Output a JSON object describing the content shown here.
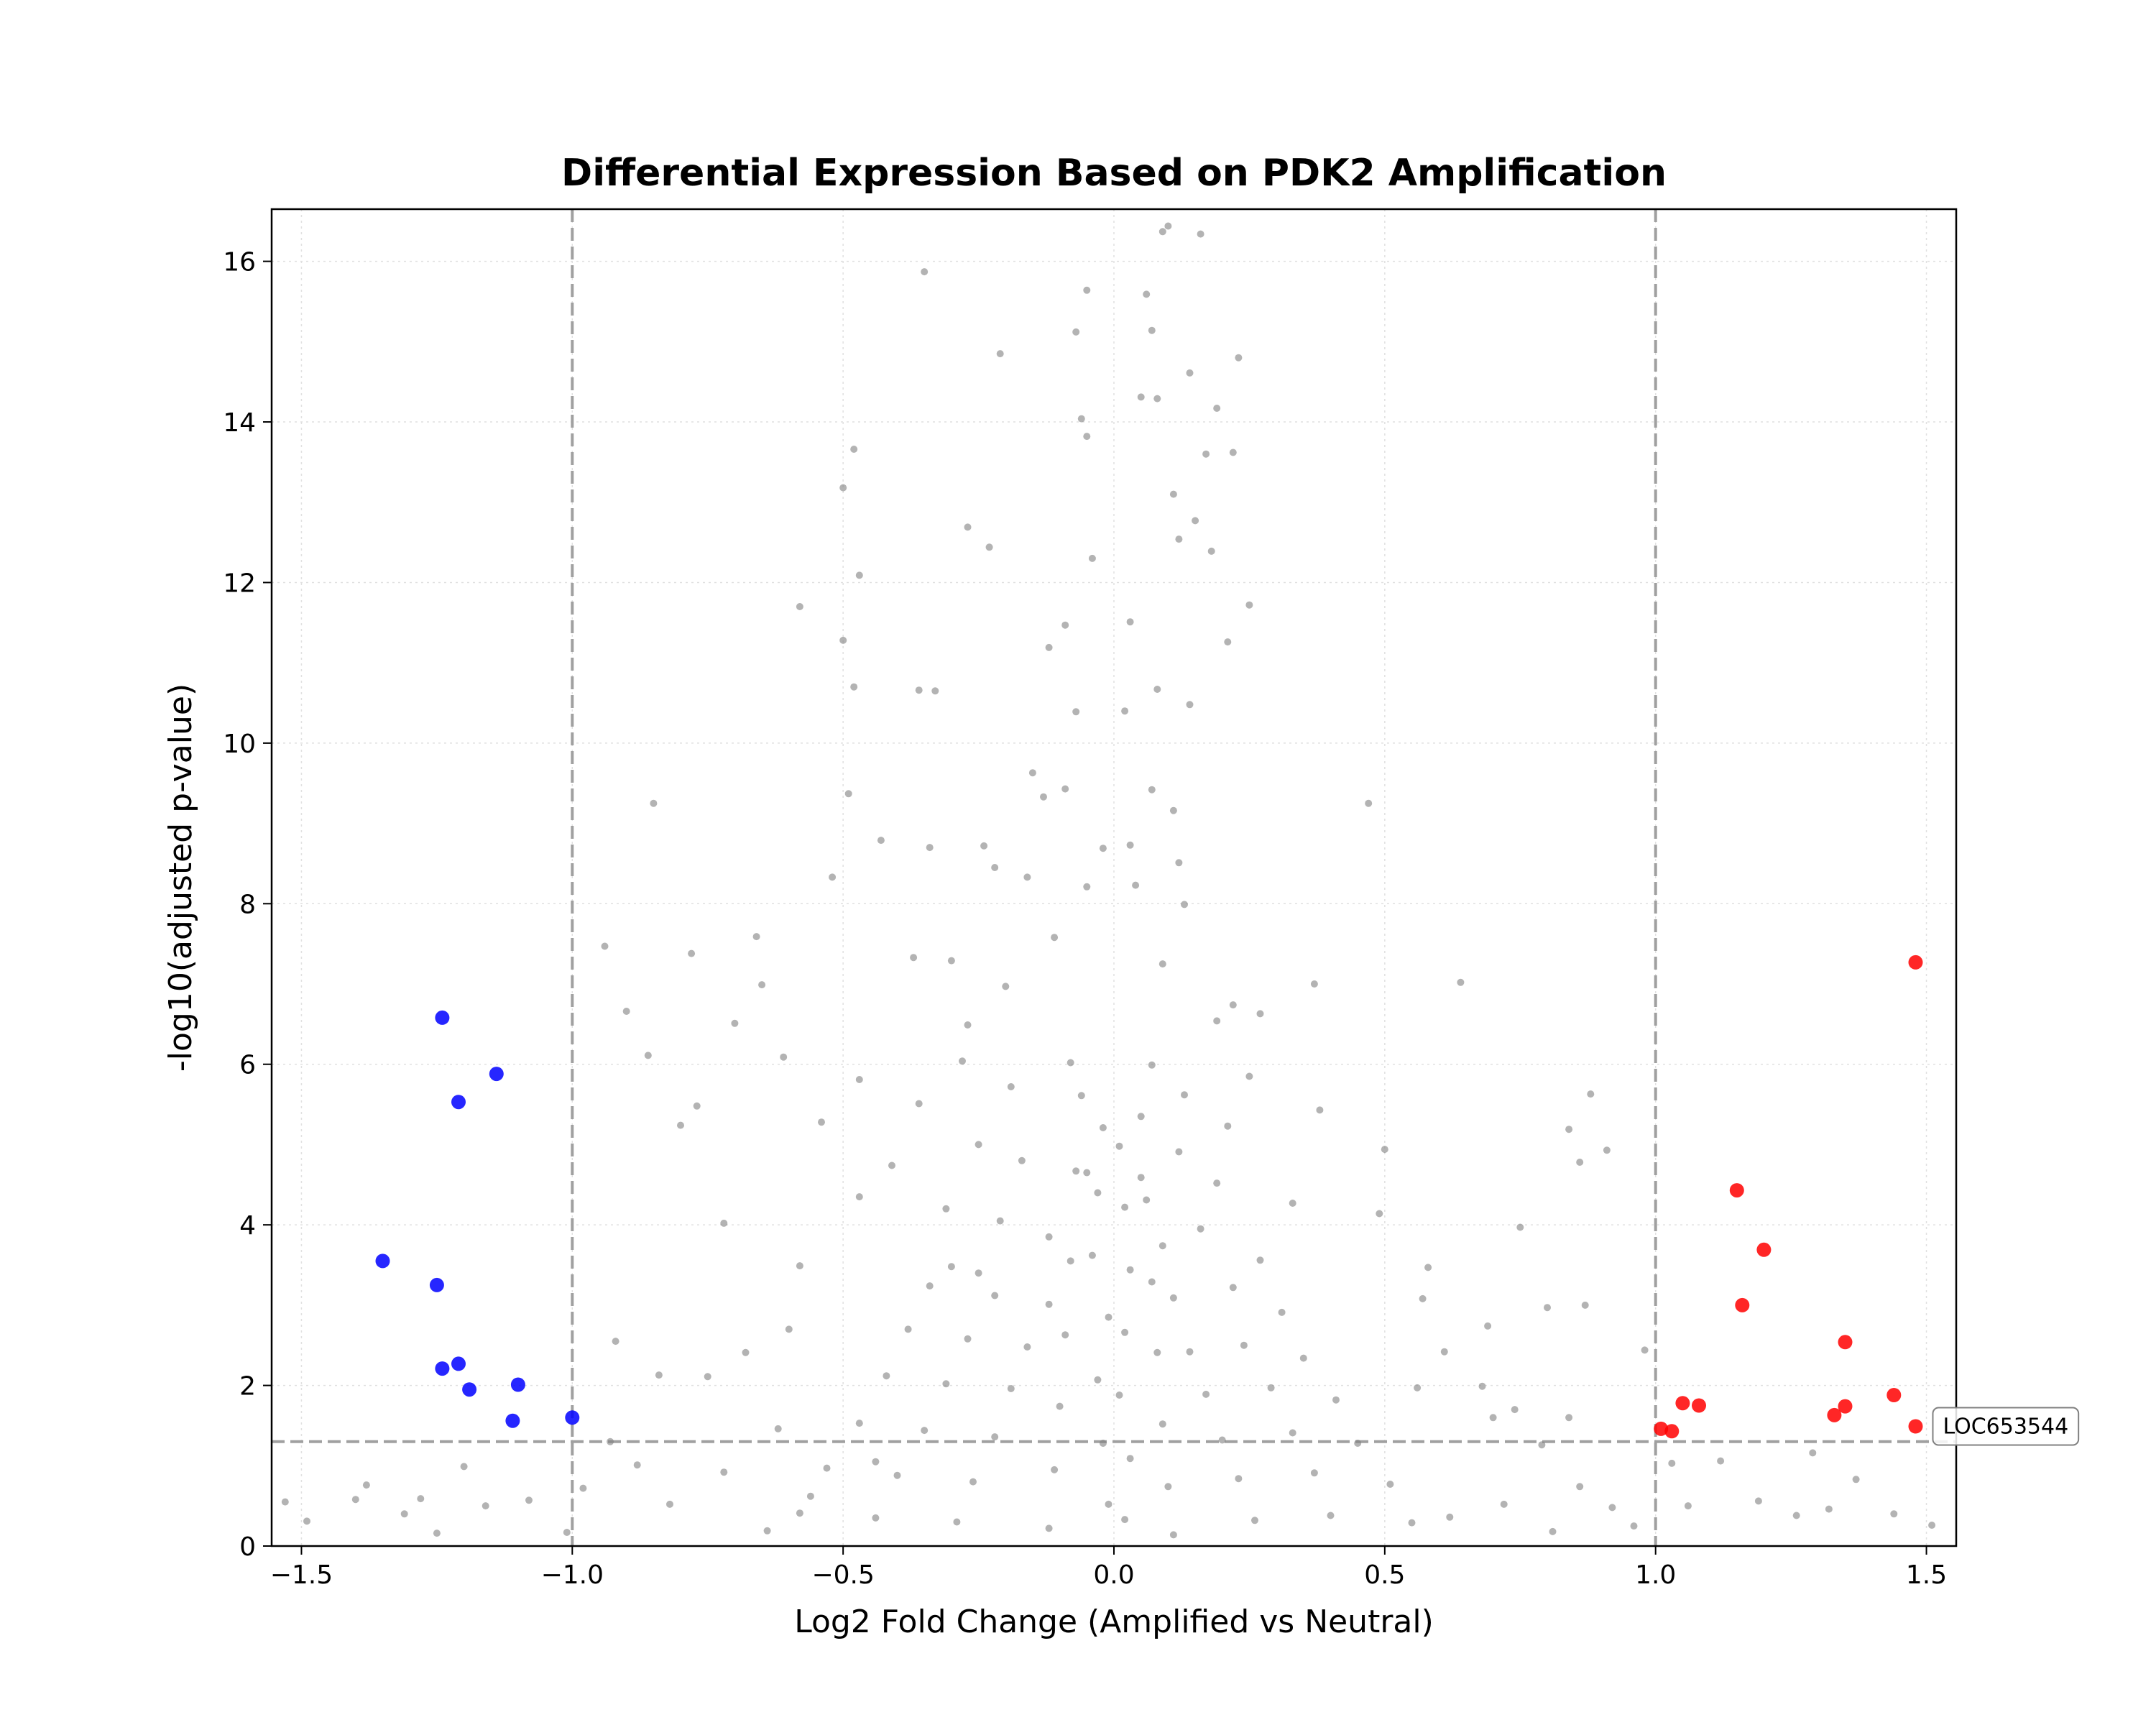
{
  "chart_data": {
    "type": "scatter",
    "title": "Differential Expression Based on PDK2 Amplification",
    "xlabel": "Log2 Fold Change (Amplified vs Neutral)",
    "ylabel": "-log10(adjusted p-value)",
    "xlim": [
      -1.555,
      1.555
    ],
    "ylim": [
      0,
      16.65
    ],
    "xticks": [
      -1.5,
      -1.0,
      -0.5,
      0.0,
      0.5,
      1.0,
      1.5
    ],
    "xtick_labels": [
      "−1.5",
      "−1.0",
      "−0.5",
      "0.0",
      "0.5",
      "1.0",
      "1.5"
    ],
    "yticks": [
      0,
      2,
      4,
      6,
      8,
      10,
      12,
      14,
      16
    ],
    "ytick_labels": [
      "0",
      "2",
      "4",
      "6",
      "8",
      "10",
      "12",
      "14",
      "16"
    ],
    "grid": true,
    "thresholds": {
      "fold_change": [
        -1.0,
        1.0
      ],
      "neg_log10_p": 1.3
    },
    "colors": {
      "background": "#808080",
      "down": "#0000ff",
      "up": "#ff0000",
      "threshold": "#a0a0a0",
      "grid": "#e0e0e0"
    },
    "background_points_note_free": true,
    "series": [
      {
        "color": "#0000ff",
        "points": [
          [
            -1.24,
            6.58
          ],
          [
            -1.14,
            5.88
          ],
          [
            -1.21,
            5.53
          ],
          [
            -1.35,
            3.55
          ],
          [
            -1.25,
            3.25
          ],
          [
            -1.21,
            2.27
          ],
          [
            -1.24,
            2.21
          ],
          [
            -1.19,
            1.95
          ],
          [
            -1.1,
            2.01
          ],
          [
            -1.11,
            1.56
          ],
          [
            -1.0,
            1.6
          ]
        ]
      },
      {
        "color": "#ff0000",
        "points": [
          [
            1.48,
            7.27
          ],
          [
            1.15,
            4.43
          ],
          [
            1.2,
            3.69
          ],
          [
            1.16,
            3.0
          ],
          [
            1.35,
            2.54
          ],
          [
            1.44,
            1.88
          ],
          [
            1.35,
            1.74
          ],
          [
            1.33,
            1.63
          ],
          [
            1.05,
            1.78
          ],
          [
            1.08,
            1.75
          ],
          [
            1.01,
            1.46
          ],
          [
            1.03,
            1.43
          ],
          [
            1.48,
            1.49
          ]
        ]
      },
      {
        "color": "#808080",
        "points": [
          [
            -0.35,
            15.87
          ],
          [
            -0.21,
            14.85
          ],
          [
            -0.48,
            13.66
          ],
          [
            -0.5,
            13.18
          ],
          [
            -0.27,
            12.69
          ],
          [
            -0.23,
            12.44
          ],
          [
            -0.47,
            12.09
          ],
          [
            -0.58,
            11.7
          ],
          [
            -0.5,
            11.28
          ],
          [
            -0.48,
            10.7
          ],
          [
            -0.36,
            10.66
          ],
          [
            -0.33,
            10.65
          ],
          [
            -0.85,
            9.25
          ],
          [
            -0.49,
            9.37
          ],
          [
            -0.43,
            8.79
          ],
          [
            -0.34,
            8.7
          ],
          [
            -0.52,
            8.33
          ],
          [
            -0.94,
            7.47
          ],
          [
            -0.78,
            7.38
          ],
          [
            -0.66,
            7.59
          ],
          [
            -0.65,
            6.99
          ],
          [
            -0.7,
            6.51
          ],
          [
            -0.37,
            7.33
          ],
          [
            -0.3,
            7.29
          ],
          [
            -0.9,
            6.66
          ],
          [
            -0.86,
            6.11
          ],
          [
            -0.61,
            6.09
          ],
          [
            -0.47,
            5.81
          ],
          [
            -0.36,
            5.51
          ],
          [
            -0.54,
            5.28
          ],
          [
            -0.77,
            5.48
          ],
          [
            -0.8,
            5.24
          ],
          [
            -0.41,
            4.74
          ],
          [
            -0.47,
            4.35
          ],
          [
            -0.72,
            4.02
          ],
          [
            -0.58,
            3.49
          ],
          [
            -0.92,
            2.55
          ],
          [
            -0.84,
            2.13
          ],
          [
            -0.62,
            1.46
          ],
          [
            -0.44,
            1.05
          ],
          [
            -0.3,
            3.48
          ],
          [
            -0.25,
            3.4
          ],
          [
            0.47,
            9.25
          ],
          [
            0.64,
            7.02
          ],
          [
            0.37,
            7.0
          ],
          [
            0.22,
            6.74
          ],
          [
            0.27,
            6.63
          ],
          [
            0.38,
            5.43
          ],
          [
            0.5,
            4.94
          ],
          [
            0.49,
            4.14
          ],
          [
            0.33,
            4.27
          ],
          [
            0.25,
            5.85
          ],
          [
            0.88,
            5.63
          ],
          [
            0.84,
            5.19
          ],
          [
            0.91,
            4.93
          ],
          [
            0.86,
            4.78
          ],
          [
            0.75,
            3.97
          ],
          [
            0.58,
            3.47
          ],
          [
            0.57,
            3.08
          ],
          [
            0.69,
            2.74
          ],
          [
            0.8,
            2.97
          ],
          [
            0.87,
            3.0
          ],
          [
            0.98,
            2.44
          ],
          [
            0.84,
            1.6
          ],
          [
            0.7,
            1.6
          ],
          [
            0.56,
            1.97
          ],
          [
            0.23,
            14.8
          ],
          [
            0.14,
            14.61
          ],
          [
            0.19,
            14.17
          ],
          [
            0.22,
            13.62
          ],
          [
            0.17,
            13.6
          ],
          [
            0.11,
            13.1
          ],
          [
            0.15,
            12.77
          ],
          [
            0.18,
            12.39
          ],
          [
            0.25,
            11.72
          ],
          [
            0.21,
            11.26
          ],
          [
            -0.05,
            15.64
          ],
          [
            0.06,
            15.59
          ],
          [
            0.09,
            16.37
          ],
          [
            0.16,
            16.34
          ],
          [
            0.1,
            16.44
          ],
          [
            -0.07,
            15.12
          ],
          [
            0.07,
            15.14
          ],
          [
            -0.06,
            14.04
          ],
          [
            -0.05,
            13.82
          ],
          [
            0.05,
            14.31
          ],
          [
            0.08,
            14.29
          ],
          [
            -0.04,
            12.3
          ],
          [
            0.12,
            12.54
          ],
          [
            0.03,
            11.51
          ],
          [
            -0.09,
            11.47
          ],
          [
            -0.12,
            11.19
          ],
          [
            0.08,
            10.67
          ],
          [
            -0.07,
            10.39
          ],
          [
            0.02,
            10.4
          ],
          [
            0.14,
            10.48
          ],
          [
            -0.15,
            9.63
          ],
          [
            -0.13,
            9.33
          ],
          [
            0.07,
            9.42
          ],
          [
            0.11,
            9.16
          ],
          [
            -0.09,
            9.43
          ],
          [
            -0.02,
            8.69
          ],
          [
            0.03,
            8.73
          ],
          [
            0.12,
            8.51
          ],
          [
            -0.24,
            8.72
          ],
          [
            -0.22,
            8.45
          ],
          [
            -0.16,
            8.33
          ],
          [
            -0.05,
            8.21
          ],
          [
            0.04,
            8.23
          ],
          [
            0.13,
            7.99
          ],
          [
            0.19,
            6.54
          ],
          [
            -0.11,
            7.58
          ],
          [
            0.09,
            7.25
          ],
          [
            -0.2,
            6.97
          ],
          [
            -0.27,
            6.49
          ],
          [
            -0.28,
            6.04
          ],
          [
            -0.19,
            5.72
          ],
          [
            -0.08,
            6.02
          ],
          [
            0.07,
            5.99
          ],
          [
            0.13,
            5.62
          ],
          [
            0.21,
            5.23
          ],
          [
            -0.25,
            5.0
          ],
          [
            -0.17,
            4.8
          ],
          [
            -0.05,
            4.65
          ],
          [
            0.05,
            4.59
          ],
          [
            0.12,
            4.91
          ],
          [
            0.19,
            4.52
          ],
          [
            -0.31,
            4.2
          ],
          [
            -0.21,
            4.05
          ],
          [
            -0.12,
            3.85
          ],
          [
            0.09,
            3.74
          ],
          [
            0.16,
            3.95
          ],
          [
            0.27,
            3.56
          ],
          [
            -0.34,
            3.24
          ],
          [
            -0.22,
            3.12
          ],
          [
            -0.12,
            3.01
          ],
          [
            0.11,
            3.09
          ],
          [
            0.22,
            3.22
          ],
          [
            0.31,
            2.91
          ],
          [
            -0.38,
            2.7
          ],
          [
            -0.27,
            2.58
          ],
          [
            -0.16,
            2.48
          ],
          [
            0.14,
            2.42
          ],
          [
            0.24,
            2.5
          ],
          [
            0.35,
            2.34
          ],
          [
            -0.42,
            2.12
          ],
          [
            -0.31,
            2.02
          ],
          [
            -0.19,
            1.96
          ],
          [
            0.17,
            1.89
          ],
          [
            0.29,
            1.97
          ],
          [
            0.41,
            1.82
          ],
          [
            -0.47,
            1.53
          ],
          [
            -0.35,
            1.44
          ],
          [
            -0.22,
            1.36
          ],
          [
            0.2,
            1.32
          ],
          [
            0.33,
            1.41
          ],
          [
            0.45,
            1.28
          ],
          [
            -0.53,
            0.97
          ],
          [
            -0.4,
            0.88
          ],
          [
            -0.26,
            0.8
          ],
          [
            0.23,
            0.84
          ],
          [
            0.37,
            0.91
          ],
          [
            0.51,
            0.77
          ],
          [
            -0.58,
            0.41
          ],
          [
            -0.44,
            0.35
          ],
          [
            -0.29,
            0.3
          ],
          [
            0.26,
            0.32
          ],
          [
            0.4,
            0.38
          ],
          [
            0.55,
            0.29
          ],
          [
            -0.02,
            5.21
          ],
          [
            0.01,
            4.98
          ],
          [
            -0.03,
            4.4
          ],
          [
            0.02,
            4.22
          ],
          [
            -0.04,
            3.62
          ],
          [
            0.03,
            3.44
          ],
          [
            -0.01,
            2.85
          ],
          [
            0.02,
            2.66
          ],
          [
            -0.03,
            2.07
          ],
          [
            0.01,
            1.88
          ],
          [
            -0.02,
            1.28
          ],
          [
            0.03,
            1.09
          ],
          [
            -0.01,
            0.52
          ],
          [
            0.02,
            0.33
          ],
          [
            -0.06,
            5.61
          ],
          [
            0.05,
            5.35
          ],
          [
            -0.07,
            4.67
          ],
          [
            0.06,
            4.31
          ],
          [
            -0.08,
            3.55
          ],
          [
            0.07,
            3.29
          ],
          [
            -0.09,
            2.63
          ],
          [
            0.08,
            2.41
          ],
          [
            -0.1,
            1.74
          ],
          [
            0.09,
            1.52
          ],
          [
            -0.11,
            0.95
          ],
          [
            0.1,
            0.74
          ],
          [
            -0.12,
            0.22
          ],
          [
            0.11,
            0.14
          ],
          [
            -1.53,
            0.55
          ],
          [
            -1.49,
            0.31
          ],
          [
            -1.4,
            0.58
          ],
          [
            -1.38,
            0.76
          ],
          [
            -1.28,
            0.59
          ],
          [
            -1.2,
            0.99
          ],
          [
            -1.16,
            0.5
          ],
          [
            -1.08,
            0.57
          ],
          [
            -1.01,
            0.17
          ],
          [
            -0.98,
            0.72
          ],
          [
            -1.25,
            0.16
          ],
          [
            -1.31,
            0.4
          ],
          [
            1.03,
            1.03
          ],
          [
            1.12,
            1.06
          ],
          [
            1.19,
            0.56
          ],
          [
            1.26,
            0.38
          ],
          [
            1.32,
            0.46
          ],
          [
            1.37,
            0.83
          ],
          [
            1.44,
            0.4
          ],
          [
            1.51,
            0.26
          ],
          [
            1.29,
            1.16
          ],
          [
            1.06,
            0.5
          ],
          [
            -0.75,
            2.11
          ],
          [
            -0.68,
            2.41
          ],
          [
            -0.6,
            2.7
          ],
          [
            0.61,
            2.42
          ],
          [
            0.68,
            1.99
          ],
          [
            0.74,
            1.7
          ],
          [
            0.79,
            1.26
          ],
          [
            -0.82,
            0.52
          ],
          [
            -0.72,
            0.92
          ],
          [
            0.72,
            0.52
          ],
          [
            0.81,
            0.18
          ],
          [
            0.92,
            0.48
          ],
          [
            0.96,
            0.25
          ],
          [
            -0.88,
            1.01
          ],
          [
            -0.93,
            1.3
          ],
          [
            0.86,
            0.74
          ],
          [
            0.62,
            0.36
          ],
          [
            -0.64,
            0.19
          ],
          [
            -0.56,
            0.62
          ]
        ]
      }
    ],
    "annotations": [
      {
        "text": "LOC653544",
        "x": 1.48,
        "y": 1.49
      }
    ]
  }
}
